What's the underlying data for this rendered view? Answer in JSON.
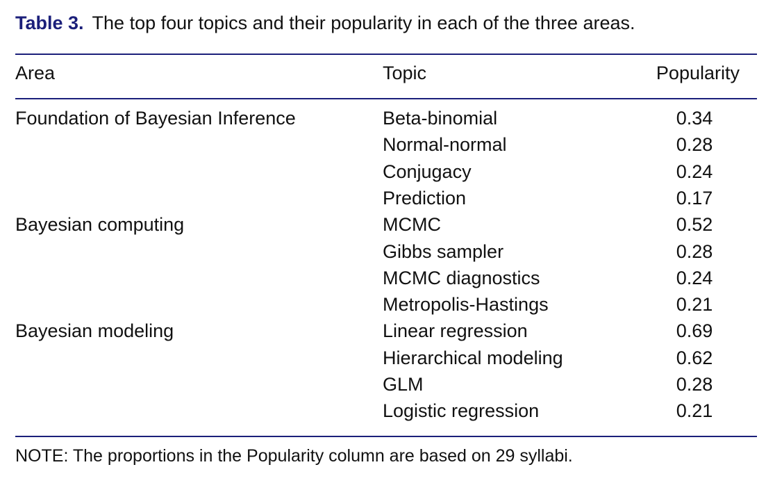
{
  "caption": {
    "label": "Table 3.",
    "text": "The top four topics and their popularity in each of the three areas."
  },
  "colors": {
    "accent": "#1b1f7a"
  },
  "columns": [
    "Area",
    "Topic",
    "Popularity"
  ],
  "rows": [
    {
      "area": "Foundation of Bayesian Inference",
      "topic": "Beta-binomial",
      "popularity": "0.34"
    },
    {
      "area": "",
      "topic": "Normal-normal",
      "popularity": "0.28"
    },
    {
      "area": "",
      "topic": "Conjugacy",
      "popularity": "0.24"
    },
    {
      "area": "",
      "topic": "Prediction",
      "popularity": "0.17"
    },
    {
      "area": "Bayesian computing",
      "topic": "MCMC",
      "popularity": "0.52"
    },
    {
      "area": "",
      "topic": "Gibbs sampler",
      "popularity": "0.28"
    },
    {
      "area": "",
      "topic": "MCMC diagnostics",
      "popularity": "0.24"
    },
    {
      "area": "",
      "topic": "Metropolis-Hastings",
      "popularity": "0.21"
    },
    {
      "area": "Bayesian modeling",
      "topic": "Linear regression",
      "popularity": "0.69"
    },
    {
      "area": "",
      "topic": "Hierarchical modeling",
      "popularity": "0.62"
    },
    {
      "area": "",
      "topic": "GLM",
      "popularity": "0.28"
    },
    {
      "area": "",
      "topic": "Logistic regression",
      "popularity": "0.21"
    }
  ],
  "note": "NOTE: The proportions in the Popularity column are based on 29 syllabi."
}
